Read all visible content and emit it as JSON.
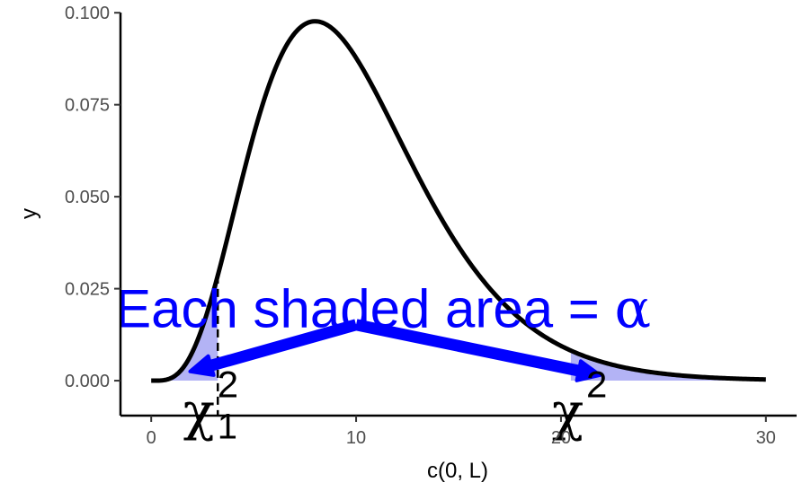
{
  "chart_data": {
    "type": "area",
    "xlabel": "c(0, L)",
    "ylabel": "y",
    "xlim": [
      -1.5,
      31.5
    ],
    "ylim": [
      -0.0095,
      0.102
    ],
    "x_ticks": [
      0,
      10,
      20,
      30
    ],
    "y_ticks": [
      0,
      0.025,
      0.05,
      0.075,
      0.1
    ],
    "x_tick_labels": [
      "0",
      "10",
      "20",
      "30"
    ],
    "y_tick_labels": [
      "0.000",
      "0.025",
      "0.050",
      "0.075",
      "0.100"
    ],
    "grid": false,
    "legend": "none",
    "curve": {
      "distribution": "chi-squared",
      "df": 10,
      "x_range": [
        0,
        30
      ],
      "peak": {
        "x": 8,
        "y": 0.0977
      },
      "color": "#000000"
    },
    "shaded_regions": [
      {
        "name": "lower-tail",
        "x_from": 0,
        "x_to": 3.25
      },
      {
        "name": "upper-tail",
        "x_from": 20.48,
        "x_to": 30
      }
    ],
    "critical_lines": [
      {
        "x": 3.25,
        "style": "dashed"
      }
    ],
    "annotation": {
      "text": "Each shaded area",
      "equals": "= ",
      "symbol": "α",
      "anchor": {
        "x": 10,
        "y": 0.0145
      }
    },
    "arrows": [
      {
        "from": {
          "x": 10,
          "y": 0.0152
        },
        "to": {
          "x": 1.9,
          "y": 0.0025
        }
      },
      {
        "from": {
          "x": 10,
          "y": 0.0152
        },
        "to": {
          "x": 21.9,
          "y": 0.0015
        }
      }
    ],
    "critical_labels": [
      {
        "base": "χ",
        "sup": "2",
        "sub": "1",
        "x": 2.0,
        "y": -0.006
      },
      {
        "base": "χ",
        "sup": "2",
        "sub": "",
        "x": 20.0,
        "y": -0.006
      }
    ],
    "colors": {
      "curve": "#000000",
      "shade": "#b3b3f5",
      "annotation": "#0000ff",
      "axis": "#000000"
    }
  }
}
